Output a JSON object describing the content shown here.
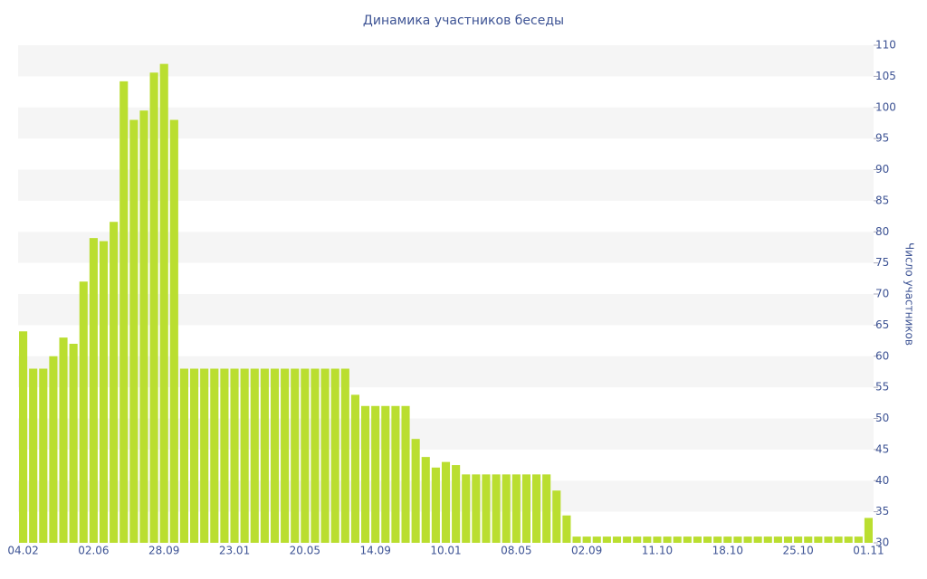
{
  "chart_data": {
    "type": "bar",
    "title": "Динамика участников беседы",
    "y_label": "Число участников",
    "categories": [
      "04.02",
      null,
      null,
      null,
      null,
      null,
      null,
      "02.06",
      null,
      null,
      null,
      null,
      null,
      null,
      "28.09",
      null,
      null,
      null,
      null,
      null,
      null,
      "23.01",
      null,
      null,
      null,
      null,
      null,
      null,
      "20.05",
      null,
      null,
      null,
      null,
      null,
      null,
      "14.09",
      null,
      null,
      null,
      null,
      null,
      null,
      "10.01",
      null,
      null,
      null,
      null,
      null,
      null,
      "08.05",
      null,
      null,
      null,
      null,
      null,
      null,
      "02.09",
      null,
      null,
      null,
      null,
      null,
      null,
      "11.10",
      null,
      null,
      null,
      null,
      null,
      null,
      "18.10",
      null,
      null,
      null,
      null,
      null,
      null,
      "25.10",
      null,
      null,
      null,
      null,
      null,
      null,
      "01.11"
    ],
    "values": [
      64,
      58,
      58,
      60,
      63,
      62,
      72,
      79,
      78.5,
      81.6,
      104.2,
      98,
      99.5,
      105.6,
      107,
      98,
      58,
      58,
      58,
      58,
      58,
      58,
      58,
      58,
      58,
      58,
      58,
      58,
      58,
      58,
      58,
      58,
      58,
      53.8,
      52,
      52,
      52,
      52,
      52,
      46.7,
      43.8,
      42.1,
      43,
      42.5,
      41,
      41,
      41,
      41,
      41,
      41,
      41,
      41,
      41,
      38.4,
      34.4,
      31,
      31,
      31,
      31,
      31,
      31,
      31,
      31,
      31,
      31,
      31,
      31,
      31,
      31,
      31,
      31,
      31,
      31,
      31,
      31,
      31,
      31,
      31,
      31,
      31,
      31,
      31,
      31,
      31,
      34
    ],
    "color": "#bade30",
    "ylim": [
      30,
      110
    ],
    "yticks": [
      30,
      35,
      40,
      45,
      50,
      55,
      60,
      65,
      70,
      75,
      80,
      85,
      90,
      95,
      100,
      105,
      110
    ],
    "grid": true
  }
}
